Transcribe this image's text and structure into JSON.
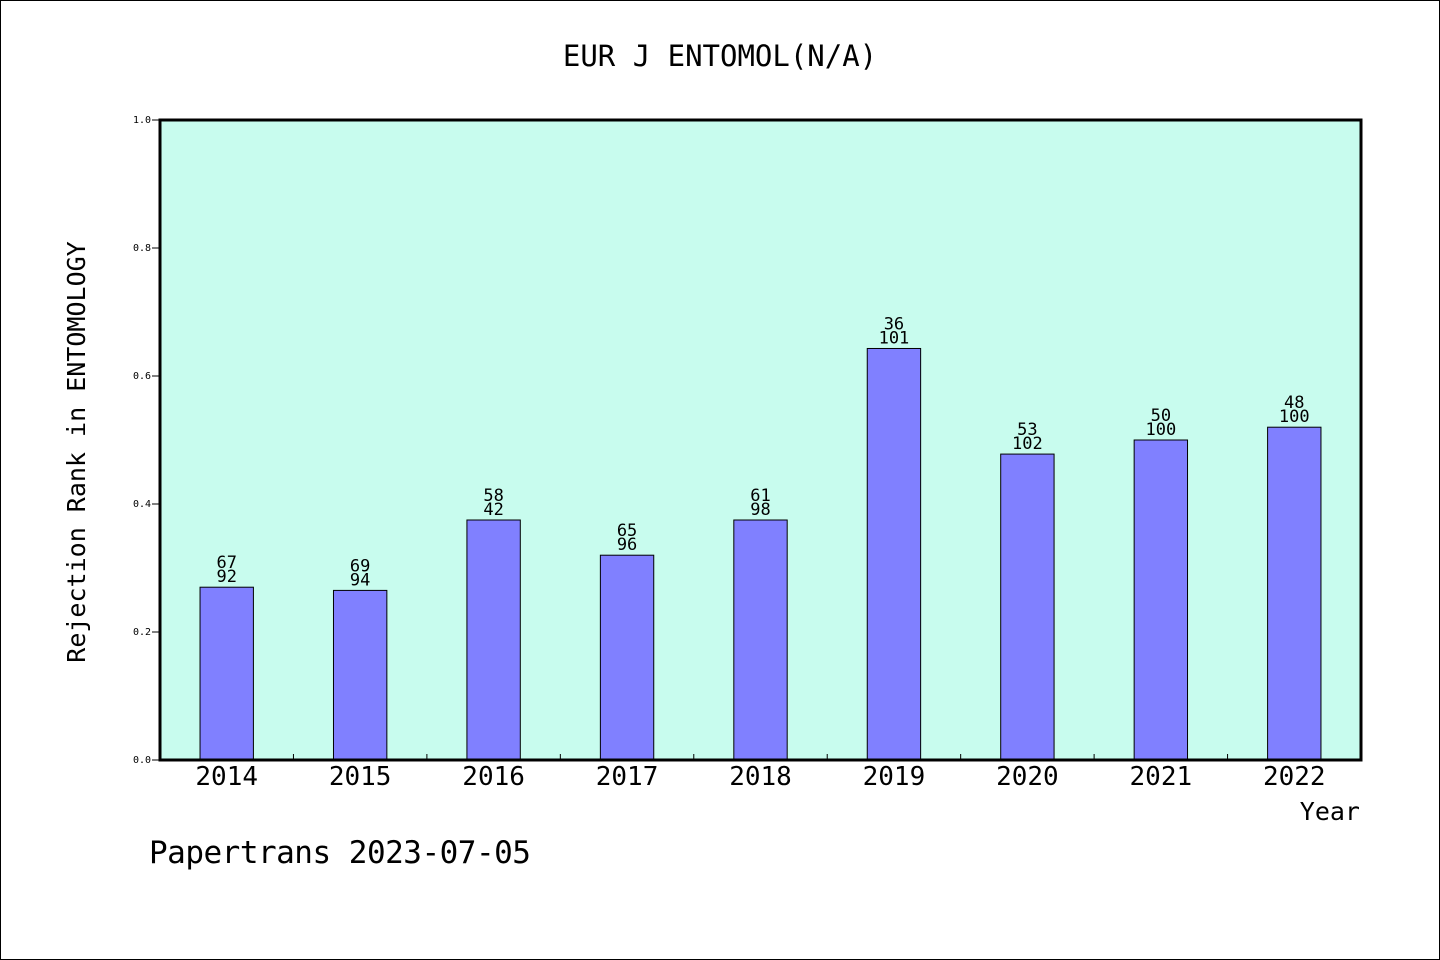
{
  "colors": {
    "plot_background": "#c8fcee",
    "bar_fill": "#8080ff",
    "bar_stroke": "#000000",
    "frame": "#000000"
  },
  "footer": {
    "text": "Papertrans 2023-07-05"
  },
  "chart_data": {
    "type": "bar",
    "title": "EUR J ENTOMOL(N/A)",
    "xlabel": "Year",
    "ylabel": "Rejection Rank in ENTOMOLOGY",
    "ylim": [
      0,
      1.0
    ],
    "yticks": [
      "0.0",
      "0.2",
      "0.4",
      "0.6",
      "0.8",
      "1.0"
    ],
    "grid": false,
    "legend": "none",
    "categories": [
      "2014",
      "2015",
      "2016",
      "2017",
      "2018",
      "2019",
      "2020",
      "2021",
      "2022"
    ],
    "values": [
      0.27,
      0.265,
      0.375,
      0.32,
      0.375,
      0.643,
      0.478,
      0.5,
      0.52
    ],
    "labels_top": [
      "67",
      "69",
      "58",
      "65",
      "61",
      "36",
      "53",
      "50",
      "48"
    ],
    "labels_bottom": [
      "92",
      "94",
      "42",
      "96",
      "98",
      "101",
      "102",
      "100",
      "100"
    ]
  }
}
